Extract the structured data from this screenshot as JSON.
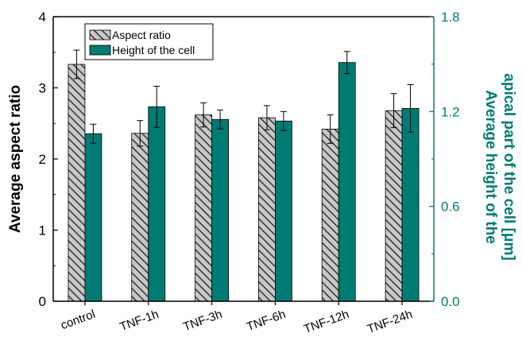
{
  "chart_data": {
    "type": "bar",
    "categories": [
      "control",
      "TNF-1h",
      "TNF-3h",
      "TNF-6h",
      "TNF-12h",
      "TNF-24h"
    ],
    "series": [
      {
        "name": "Aspect ratio",
        "axis": "left",
        "values": [
          3.33,
          2.36,
          2.62,
          2.58,
          2.42,
          2.68
        ],
        "errors": [
          0.2,
          0.18,
          0.17,
          0.17,
          0.2,
          0.24
        ],
        "color": "#a0a0a0",
        "pattern": "diagonal-hatch"
      },
      {
        "name": "Height of the cell",
        "axis": "right",
        "values": [
          1.06,
          1.23,
          1.15,
          1.14,
          1.51,
          1.22
        ],
        "errors": [
          0.06,
          0.13,
          0.06,
          0.06,
          0.07,
          0.15
        ],
        "color": "#007b73",
        "pattern": "solid"
      }
    ],
    "ylabel": "Average aspect ratio",
    "y2label_lines": [
      "Average height of the",
      "apical part of the cell [μm]"
    ],
    "ylim": [
      0,
      4
    ],
    "y2lim": [
      0,
      1.8
    ],
    "yticks": [
      "0",
      "1",
      "2",
      "3",
      "4"
    ],
    "y2ticks": [
      "0.0",
      "0.6",
      "1.2",
      "1.8"
    ],
    "y2_axis_color": "#007b73",
    "legend": "top-left",
    "grid": false
  }
}
